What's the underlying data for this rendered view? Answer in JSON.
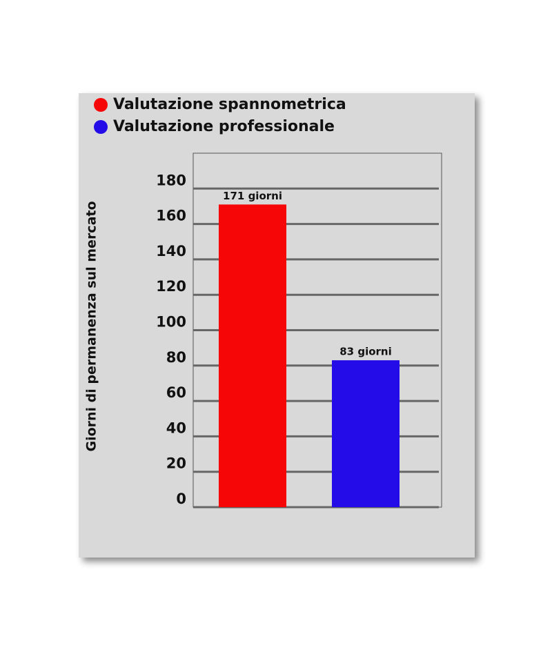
{
  "chart_data": {
    "type": "bar",
    "y_label": "Giorni di permanenza sul mercato",
    "series": [
      {
        "name": "Valutazione spannometrica",
        "color": "#f60606",
        "values": [
          171
        ],
        "value_labels": [
          "171 giorni"
        ]
      },
      {
        "name": "Valutazione professionale",
        "color": "#230ce8",
        "values": [
          83
        ],
        "value_labels": [
          "83 giorni"
        ]
      }
    ],
    "ylim": [
      0,
      200
    ],
    "yticks": [
      0,
      20,
      40,
      60,
      80,
      100,
      120,
      140,
      160,
      180
    ],
    "grid": true
  }
}
